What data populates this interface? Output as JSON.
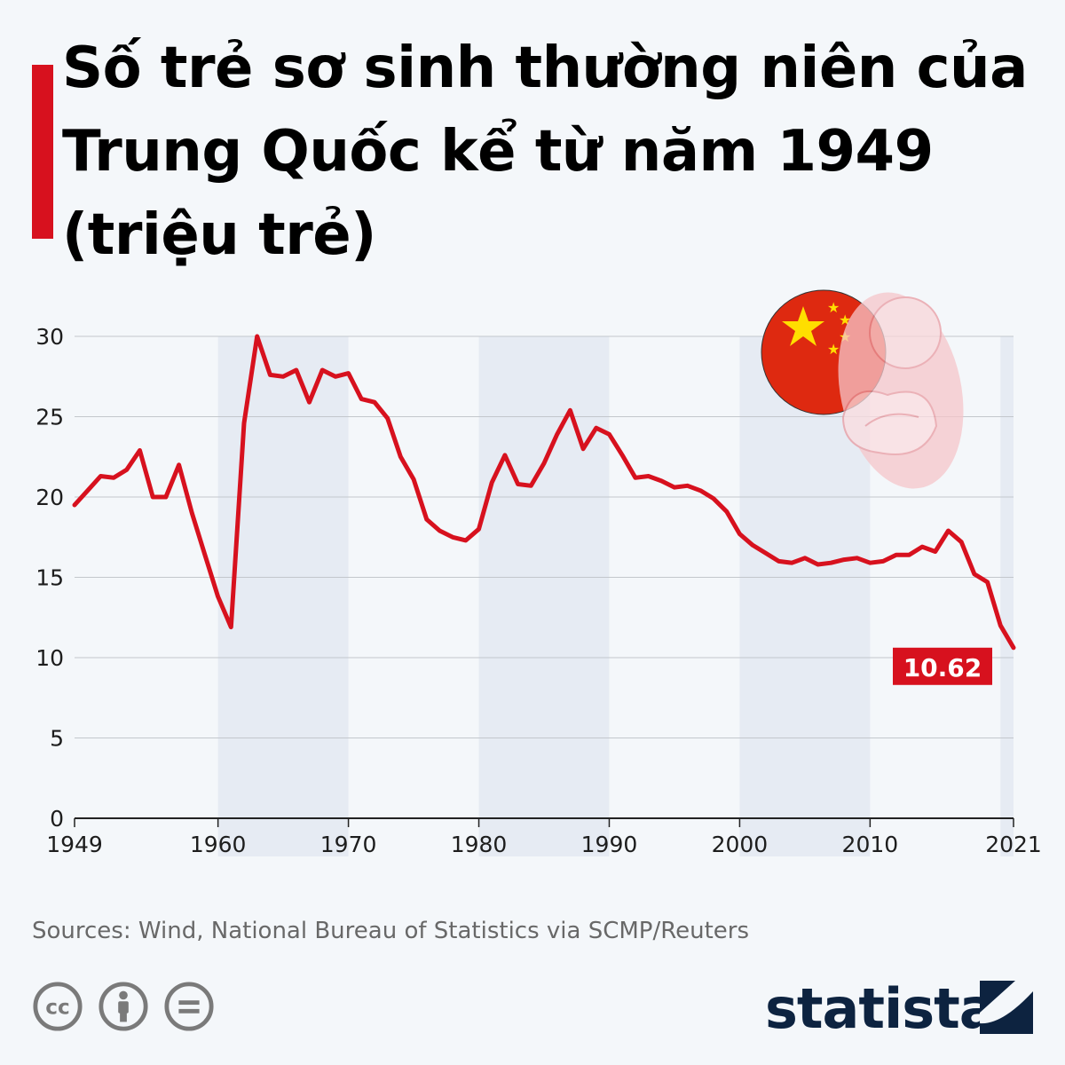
{
  "header": {
    "title": "Số trẻ sơ sinh thường niên của Trung Quốc kể từ năm 1949 (triệu trẻ)",
    "accent_color": "#d7111e"
  },
  "chart_data": {
    "type": "line",
    "title": "Số trẻ sơ sinh thường niên của Trung Quốc kể từ năm 1949 (triệu trẻ)",
    "xlabel": "",
    "ylabel": "",
    "xlim": [
      1949,
      2021
    ],
    "ylim": [
      0,
      30
    ],
    "x_ticks": [
      "1949",
      "1960",
      "1970",
      "1980",
      "1990",
      "2000",
      "2010",
      "2021"
    ],
    "y_ticks": [
      "0",
      "5",
      "10",
      "15",
      "20",
      "25",
      "30"
    ],
    "grid": true,
    "shaded_decades": [
      [
        1960,
        1970
      ],
      [
        1980,
        1990
      ],
      [
        2000,
        2010
      ],
      [
        2020,
        2021
      ]
    ],
    "line_color": "#d7111e",
    "series": [
      {
        "x": [
          1949,
          1950,
          1951,
          1952,
          1953,
          1954,
          1955,
          1956,
          1957,
          1958,
          1959,
          1960,
          1961,
          1962,
          1963,
          1964,
          1965,
          1966,
          1967,
          1968,
          1969,
          1970,
          1971,
          1972,
          1973,
          1974,
          1975,
          1976,
          1977,
          1978,
          1979,
          1980,
          1981,
          1982,
          1983,
          1984,
          1985,
          1986,
          1987,
          1988,
          1989,
          1990,
          1991,
          1992,
          1993,
          1994,
          1995,
          1996,
          1997,
          1998,
          1999,
          2000,
          2001,
          2002,
          2003,
          2004,
          2005,
          2006,
          2007,
          2008,
          2009,
          2010,
          2011,
          2012,
          2013,
          2014,
          2015,
          2016,
          2017,
          2018,
          2019,
          2020,
          2021
        ],
        "values": [
          19.5,
          20.4,
          21.3,
          21.2,
          21.7,
          22.9,
          20.0,
          20.0,
          22.0,
          19.0,
          16.4,
          13.8,
          11.9,
          24.6,
          30.0,
          27.6,
          27.5,
          27.9,
          25.9,
          27.9,
          27.5,
          27.7,
          26.1,
          25.9,
          24.9,
          22.5,
          21.1,
          18.6,
          17.9,
          17.5,
          17.3,
          18.0,
          20.9,
          22.6,
          20.8,
          20.7,
          22.1,
          23.9,
          25.4,
          23.0,
          24.3,
          23.9,
          22.6,
          21.2,
          21.3,
          21.0,
          20.6,
          20.7,
          20.4,
          19.9,
          19.1,
          17.7,
          17.0,
          16.5,
          16.0,
          15.9,
          16.2,
          15.8,
          15.9,
          16.1,
          16.2,
          15.9,
          16.0,
          16.4,
          16.4,
          16.9,
          16.6,
          17.9,
          17.2,
          15.2,
          14.7,
          12.0,
          10.62
        ]
      }
    ],
    "annotation": "10.62"
  },
  "footer": {
    "source": "Sources: Wind, National Bureau of Statistics via SCMP/Reuters",
    "brand": "statista",
    "cc_icons": [
      "cc-icon",
      "attribution-icon",
      "no-derivatives-icon"
    ]
  }
}
